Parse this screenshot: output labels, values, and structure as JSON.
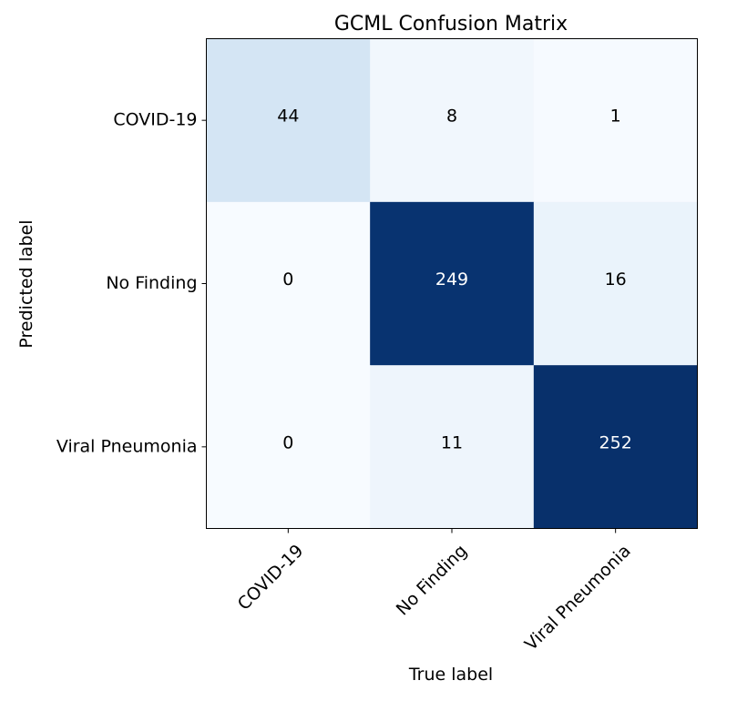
{
  "chart_data": {
    "type": "heatmap",
    "title": "GCML Confusion Matrix",
    "xlabel": "True label",
    "ylabel": "Predicted label",
    "x_categories": [
      "COVID-19",
      "No Finding",
      "Viral Pneumonia"
    ],
    "y_categories": [
      "COVID-19",
      "No Finding",
      "Viral Pneumonia"
    ],
    "matrix": [
      [
        44,
        8,
        1
      ],
      [
        0,
        249,
        16
      ],
      [
        0,
        11,
        252
      ]
    ],
    "colormap": "Blues",
    "color_low": "#f7fbff",
    "color_high": "#08306b",
    "text_dark": "#000000",
    "text_light": "#ffffff"
  }
}
